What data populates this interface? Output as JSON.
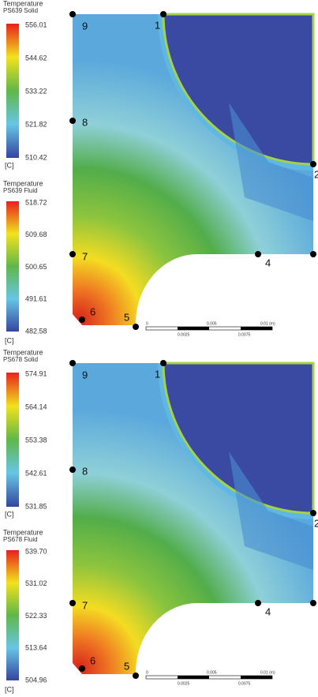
{
  "panels": [
    {
      "legends": [
        {
          "title": "Temperature",
          "subtitle": "PS639 Solid",
          "ticks": [
            "556.01",
            "544.62",
            "533.22",
            "521.82",
            "510.42"
          ],
          "unit": "[C]"
        },
        {
          "title": "Temperature",
          "subtitle": "PS639 Fluid",
          "ticks": [
            "518.72",
            "509.68",
            "500.65",
            "491.61",
            "482.58"
          ],
          "unit": "[C]"
        }
      ],
      "points": [
        "9",
        "1",
        "2",
        "8",
        "7",
        "6",
        "5",
        "4"
      ],
      "scale": [
        "0",
        "0.005",
        "0.01 (m)",
        "0.0025",
        "0.0075"
      ]
    },
    {
      "legends": [
        {
          "title": "Temperature",
          "subtitle": "PS678 Solid",
          "ticks": [
            "574.91",
            "564.14",
            "553.38",
            "542.61",
            "531.85"
          ],
          "unit": "[C]"
        },
        {
          "title": "Temperature",
          "subtitle": "PS678 Fluid",
          "ticks": [
            "539.70",
            "531.02",
            "522.33",
            "513.64",
            "504.96"
          ],
          "unit": "[C]"
        }
      ],
      "points": [
        "9",
        "1",
        "2",
        "8",
        "7",
        "6",
        "5",
        "4"
      ],
      "scale": [
        "0",
        "0.005",
        "0.01 (m)",
        "0.0025",
        "0.0075"
      ]
    }
  ]
}
